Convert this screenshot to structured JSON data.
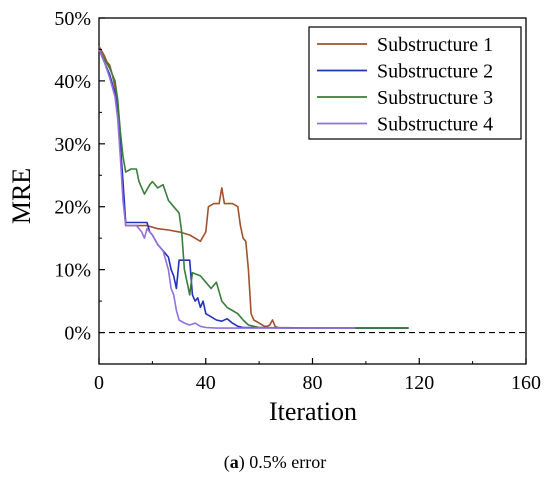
{
  "chart_data": {
    "type": "line",
    "xlabel": "Iteration",
    "ylabel": "MRE",
    "xlim": [
      0,
      160
    ],
    "ylim": [
      -5,
      50
    ],
    "xticks": [
      "0",
      "40",
      "80",
      "120",
      "160"
    ],
    "yticks": [
      "0%",
      "10%",
      "20%",
      "30%",
      "40%",
      "50%"
    ],
    "reference_line": {
      "y": 0,
      "style": "dashed"
    },
    "legend_position": "top-right",
    "series": [
      {
        "name": "Substructure 1",
        "color": "#a0522d",
        "points": [
          [
            0,
            45.5
          ],
          [
            2,
            44
          ],
          [
            3,
            43
          ],
          [
            4,
            42.5
          ],
          [
            5,
            41
          ],
          [
            6,
            39
          ],
          [
            7,
            36
          ],
          [
            8,
            30
          ],
          [
            9,
            22
          ],
          [
            10,
            17
          ],
          [
            14,
            17
          ],
          [
            18,
            17
          ],
          [
            22,
            16.5
          ],
          [
            26,
            16.3
          ],
          [
            30,
            16
          ],
          [
            34,
            15.5
          ],
          [
            36,
            15
          ],
          [
            38,
            14.5
          ],
          [
            40,
            16
          ],
          [
            41,
            20
          ],
          [
            43,
            20.5
          ],
          [
            45,
            20.5
          ],
          [
            46,
            23
          ],
          [
            47,
            20.5
          ],
          [
            50,
            20.5
          ],
          [
            52,
            20
          ],
          [
            53,
            17
          ],
          [
            54,
            15
          ],
          [
            55,
            14.5
          ],
          [
            56,
            10
          ],
          [
            57,
            3
          ],
          [
            58,
            2
          ],
          [
            60,
            1.5
          ],
          [
            62,
            1
          ],
          [
            63,
            1
          ],
          [
            64,
            1.2
          ],
          [
            65,
            2
          ],
          [
            66,
            1
          ],
          [
            67,
            0.8
          ],
          [
            80,
            0.7
          ],
          [
            100,
            0.7
          ],
          [
            116,
            0.7
          ]
        ]
      },
      {
        "name": "Substructure 2",
        "color": "#2233bb",
        "points": [
          [
            0,
            45
          ],
          [
            2,
            43
          ],
          [
            4,
            41
          ],
          [
            6,
            38
          ],
          [
            7,
            35
          ],
          [
            8,
            30
          ],
          [
            9,
            24
          ],
          [
            10,
            17.5
          ],
          [
            14,
            17.5
          ],
          [
            18,
            17.5
          ],
          [
            19,
            16
          ],
          [
            20,
            15.5
          ],
          [
            22,
            14
          ],
          [
            24,
            13
          ],
          [
            26,
            12
          ],
          [
            27,
            10
          ],
          [
            28,
            9
          ],
          [
            29,
            7
          ],
          [
            30,
            11.5
          ],
          [
            32,
            11.5
          ],
          [
            34,
            11.5
          ],
          [
            35,
            6
          ],
          [
            36,
            5
          ],
          [
            37,
            5.5
          ],
          [
            38,
            4
          ],
          [
            39,
            5
          ],
          [
            40,
            3
          ],
          [
            42,
            2.5
          ],
          [
            44,
            2
          ],
          [
            46,
            1.8
          ],
          [
            48,
            2.2
          ],
          [
            50,
            1.5
          ],
          [
            52,
            1
          ],
          [
            54,
            0.8
          ],
          [
            56,
            0.8
          ],
          [
            80,
            0.7
          ],
          [
            100,
            0.7
          ],
          [
            116,
            0.7
          ]
        ]
      },
      {
        "name": "Substructure 3",
        "color": "#3a7d3a",
        "points": [
          [
            0,
            45
          ],
          [
            2,
            43.5
          ],
          [
            4,
            42
          ],
          [
            6,
            40
          ],
          [
            7,
            37
          ],
          [
            8,
            32
          ],
          [
            9,
            28
          ],
          [
            10,
            25.5
          ],
          [
            12,
            26
          ],
          [
            14,
            26
          ],
          [
            15,
            24
          ],
          [
            17,
            22
          ],
          [
            19,
            23.5
          ],
          [
            20,
            24
          ],
          [
            22,
            23
          ],
          [
            24,
            23.5
          ],
          [
            26,
            21
          ],
          [
            28,
            20
          ],
          [
            30,
            19
          ],
          [
            31,
            16
          ],
          [
            32,
            10
          ],
          [
            33,
            8
          ],
          [
            34,
            6
          ],
          [
            35,
            9.5
          ],
          [
            38,
            9
          ],
          [
            40,
            8
          ],
          [
            42,
            7
          ],
          [
            44,
            8
          ],
          [
            46,
            5
          ],
          [
            48,
            4
          ],
          [
            50,
            3.5
          ],
          [
            52,
            3
          ],
          [
            54,
            2
          ],
          [
            56,
            1.2
          ],
          [
            58,
            1
          ],
          [
            60,
            0.8
          ],
          [
            70,
            0.7
          ],
          [
            100,
            0.7
          ],
          [
            116,
            0.7
          ]
        ]
      },
      {
        "name": "Substructure 4",
        "color": "#9370db",
        "points": [
          [
            0,
            45
          ],
          [
            2,
            43
          ],
          [
            4,
            40.5
          ],
          [
            6,
            37.5
          ],
          [
            7,
            34
          ],
          [
            8,
            28
          ],
          [
            9,
            21
          ],
          [
            10,
            17
          ],
          [
            12,
            17
          ],
          [
            14,
            17
          ],
          [
            16,
            16
          ],
          [
            17,
            15
          ],
          [
            18,
            16.5
          ],
          [
            20,
            15.5
          ],
          [
            22,
            14
          ],
          [
            24,
            13
          ],
          [
            26,
            10
          ],
          [
            27,
            7
          ],
          [
            28,
            6
          ],
          [
            29,
            3.5
          ],
          [
            30,
            2
          ],
          [
            32,
            1.5
          ],
          [
            34,
            1.2
          ],
          [
            36,
            1.5
          ],
          [
            38,
            1
          ],
          [
            40,
            0.8
          ],
          [
            44,
            0.7
          ],
          [
            60,
            0.7
          ],
          [
            80,
            0.7
          ],
          [
            96,
            0.7
          ]
        ]
      }
    ]
  },
  "caption": {
    "label": "a",
    "text": "0.5% error"
  }
}
